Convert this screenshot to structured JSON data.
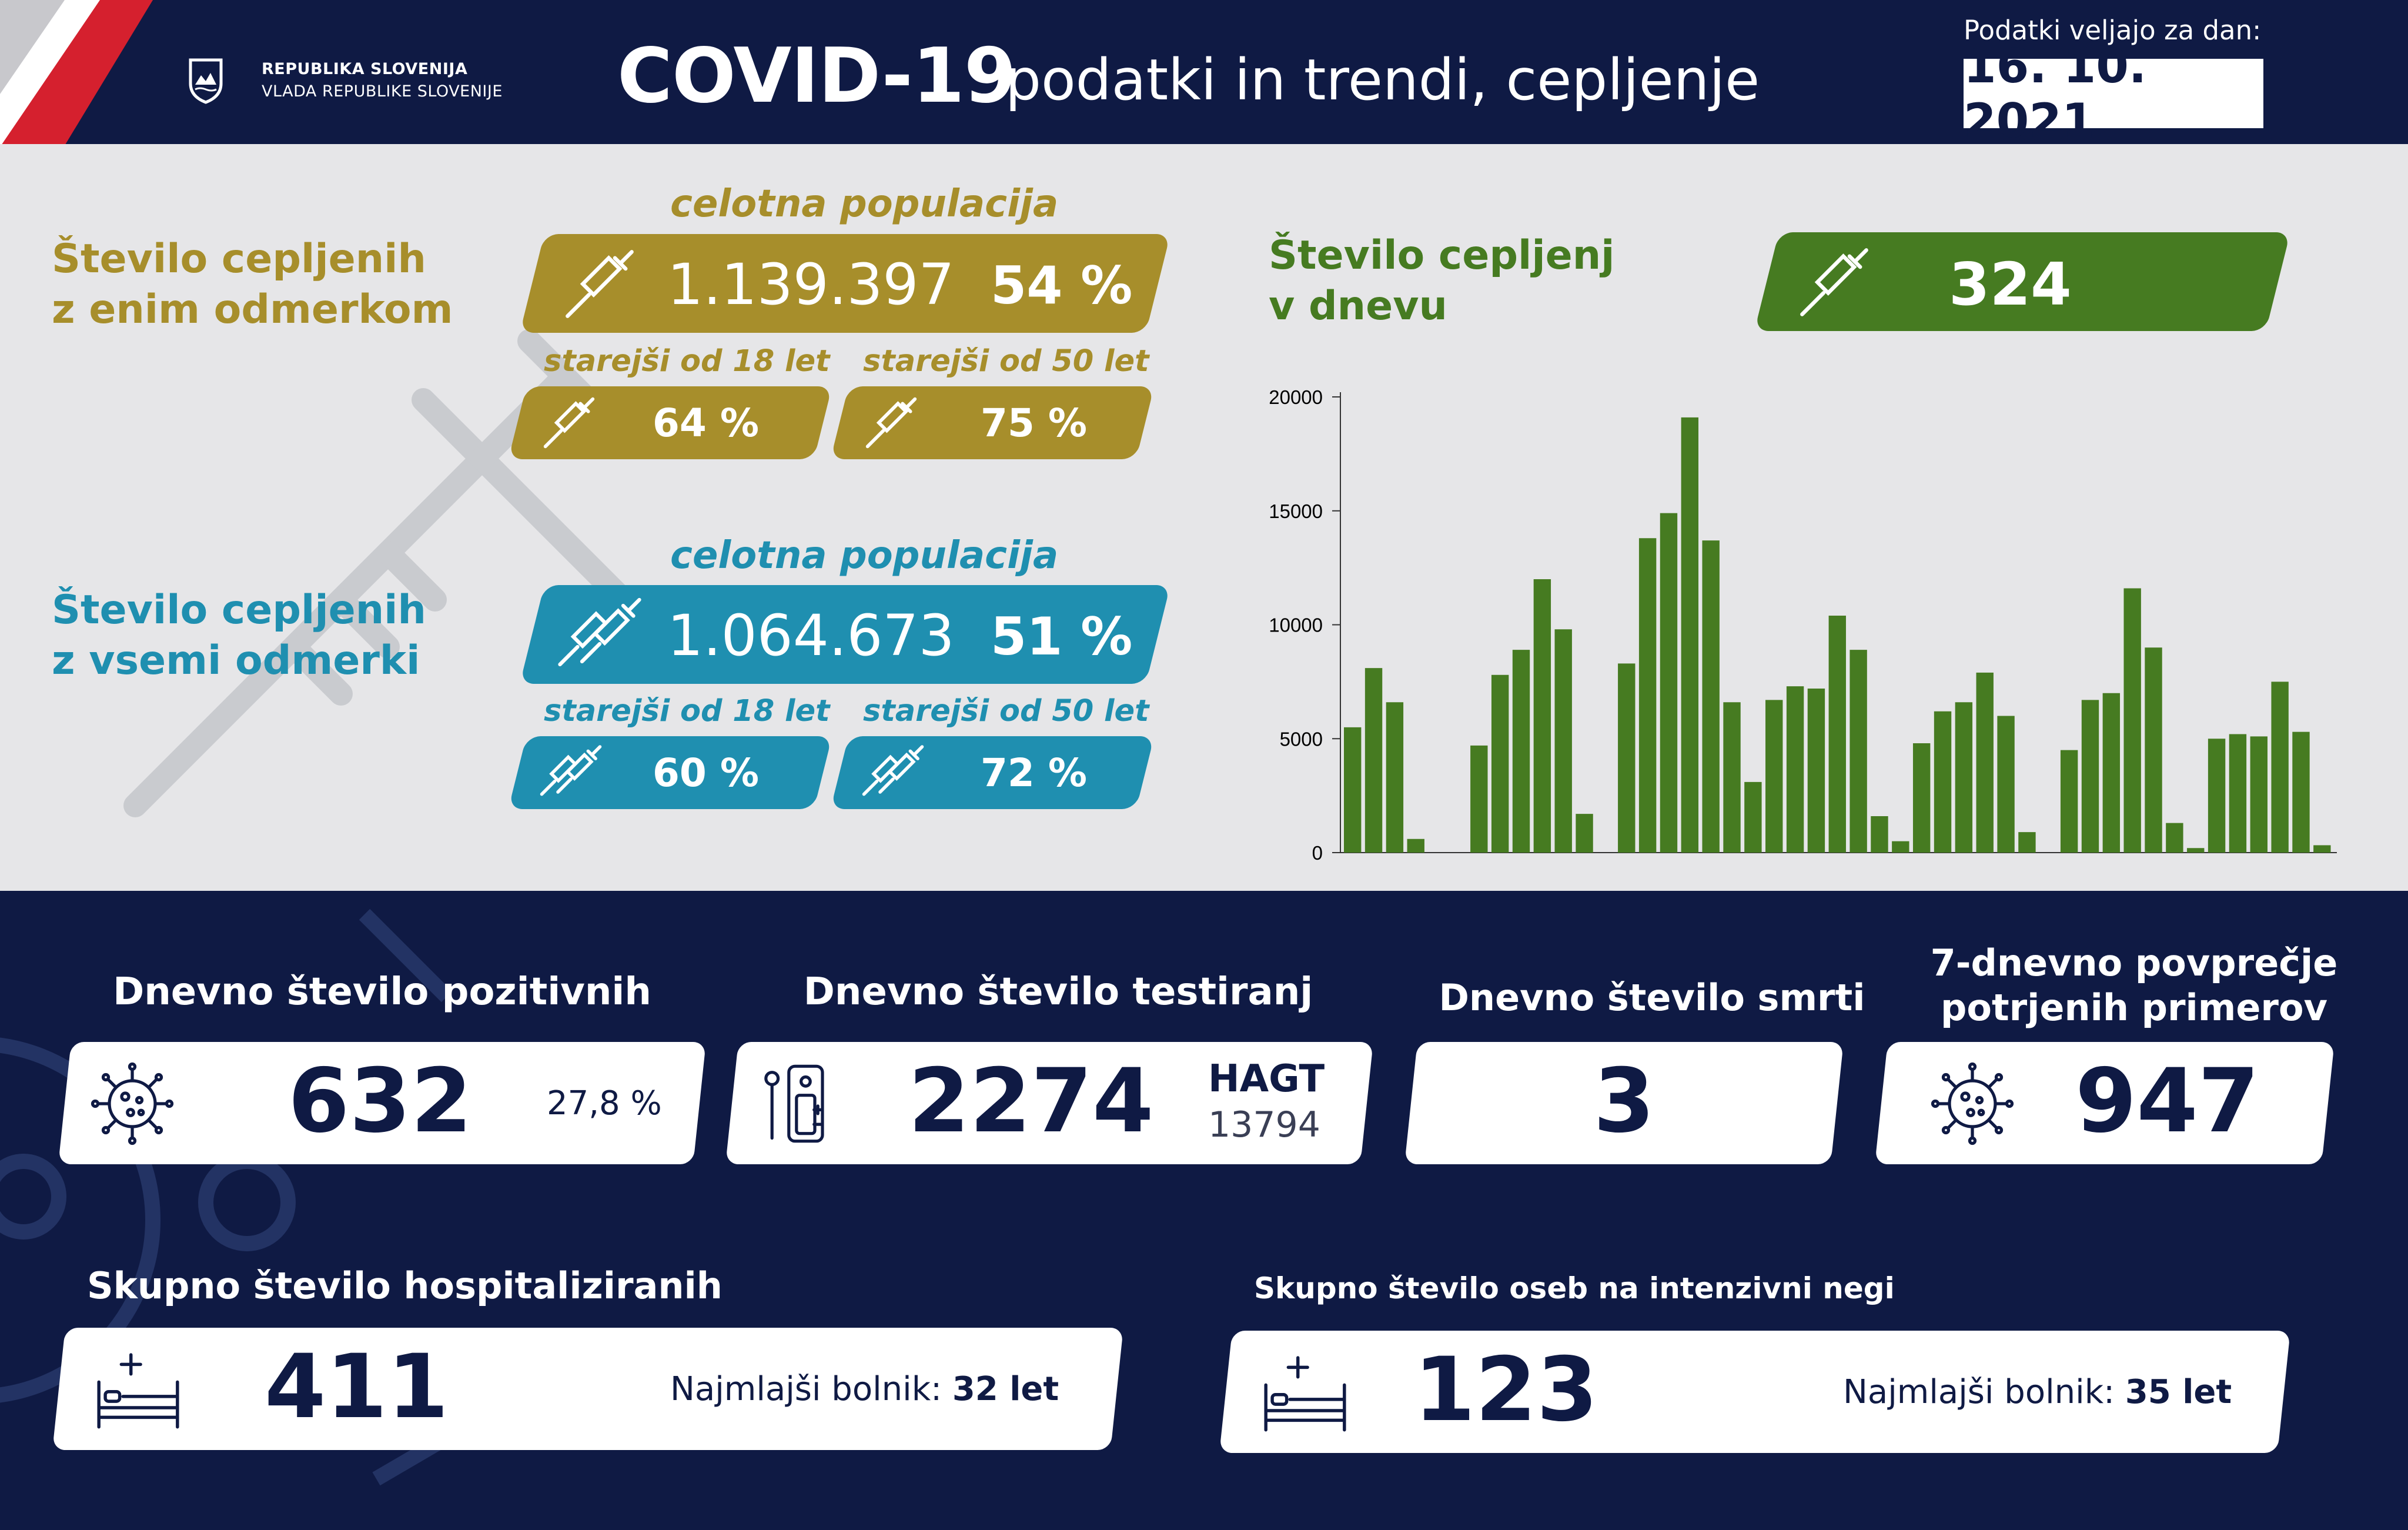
{
  "header": {
    "gov_line1": "REPUBLIKA SLOVENIJA",
    "gov_line2": "VLADA REPUBLIKE SLOVENIJE",
    "title_main": "COVID-19",
    "title_sub": "podatki in trendi, cepljenje",
    "date_label": "Podatki veljajo za dan:",
    "date_value": "16. 10. 2021"
  },
  "one_dose": {
    "title_line1": "Število cepljenih",
    "title_line2": "z enim odmerkom",
    "pop_label": "celotna populacija",
    "total": "1.139.397",
    "total_pct": "54 %",
    "age18_label": "starejši od 18 let",
    "age18_pct": "64 %",
    "age50_label": "starejši od 50 let",
    "age50_pct": "75 %"
  },
  "all_doses": {
    "title_line1": "Število cepljenih",
    "title_line2": "z vsemi odmerki",
    "pop_label": "celotna populacija",
    "total": "1.064.673",
    "total_pct": "51 %",
    "age18_label": "starejši od 18 let",
    "age18_pct": "60 %",
    "age50_label": "starejši od 50 let",
    "age50_pct": "72 %"
  },
  "daily_vacc": {
    "title_line1": "Število cepljenj",
    "title_line2": "v dnevu",
    "value": "324"
  },
  "chart_data": {
    "type": "bar",
    "title": "",
    "xlabel": "",
    "ylabel": "",
    "ylim": [
      0,
      20000
    ],
    "yticks": [
      "0",
      "5000",
      "10000",
      "15000",
      "20000"
    ],
    "color": "#467b21",
    "values": [
      5500,
      8100,
      6600,
      600,
      0,
      0,
      4700,
      7800,
      8900,
      12000,
      9800,
      1700,
      0,
      8300,
      13800,
      14900,
      19100,
      13700,
      6600,
      3100,
      6700,
      7300,
      7200,
      10400,
      8900,
      1600,
      500,
      4800,
      6200,
      6600,
      7900,
      6000,
      900,
      0,
      4500,
      6700,
      7000,
      11600,
      9000,
      1300,
      200,
      5000,
      5200,
      5100,
      7500,
      5300,
      324
    ]
  },
  "kpis": {
    "positive_title": "Dnevno število pozitivnih",
    "positive_value": "632",
    "positive_pct": "27,8 %",
    "tests_title": "Dnevno število testiranj",
    "tests_value": "2274",
    "hagt_label": "HAGT",
    "hagt_value": "13794",
    "deaths_title": "Dnevno število smrti",
    "deaths_value": "3",
    "avg_title_line1": "7-dnevno povprečje",
    "avg_title_line2": "potrjenih primerov",
    "avg_value": "947",
    "hosp_title": "Skupno število hospitaliziranih",
    "hosp_value": "411",
    "hosp_youngest_label": "Najmlajši bolnik:",
    "hosp_youngest_value": "32 let",
    "icu_title": "Skupno število oseb na intenzivni negi",
    "icu_value": "123",
    "icu_youngest_label": "Najmlajši bolnik:",
    "icu_youngest_value": "35 let"
  },
  "colors": {
    "navy": "#0f1a44",
    "gold": "#a78e2b",
    "teal": "#1f8fb0",
    "green": "#467b21",
    "panel": "#e6e6e8"
  },
  "icons": [
    "gov-crest-icon",
    "syringe-icon",
    "double-syringe-icon",
    "virus-icon",
    "test-kit-icon",
    "hospital-bed-icon"
  ]
}
